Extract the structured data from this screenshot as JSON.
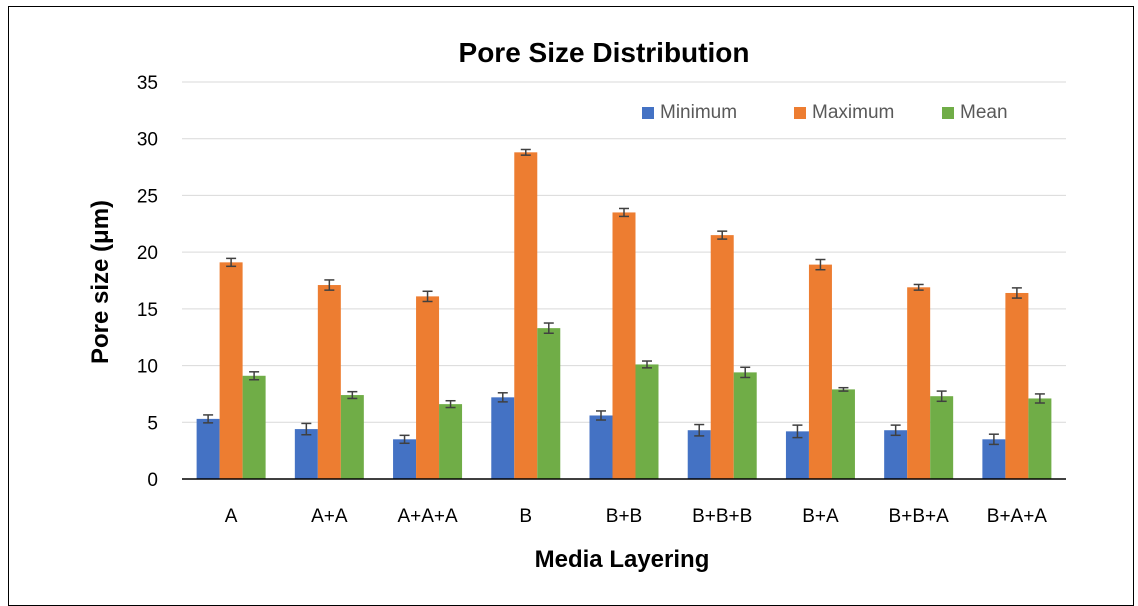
{
  "chart_data": {
    "type": "bar",
    "title": "Pore Size Distribution",
    "xlabel": "Media Layering",
    "ylabel": "Pore size (μm)",
    "ylim": [
      0,
      35
    ],
    "yticks": [
      0,
      5,
      10,
      15,
      20,
      25,
      30,
      35
    ],
    "grid": true,
    "legend_position": "top-right",
    "categories": [
      "A",
      "A+A",
      "A+A+A",
      "B",
      "B+B",
      "B+B+B",
      "B+A",
      "B+B+A",
      "B+A+A"
    ],
    "series": [
      {
        "name": "Minimum",
        "color": "#4472C4",
        "values": [
          5.3,
          4.4,
          3.5,
          7.2,
          5.6,
          4.3,
          4.2,
          4.3,
          3.5
        ],
        "errors": [
          0.35,
          0.5,
          0.35,
          0.4,
          0.4,
          0.5,
          0.55,
          0.45,
          0.45
        ]
      },
      {
        "name": "Maximum",
        "color": "#ED7D31",
        "values": [
          19.1,
          17.1,
          16.1,
          28.8,
          23.5,
          21.5,
          18.9,
          16.9,
          16.4
        ],
        "errors": [
          0.35,
          0.45,
          0.45,
          0.25,
          0.35,
          0.35,
          0.45,
          0.25,
          0.45
        ]
      },
      {
        "name": "Mean",
        "color": "#70AD47",
        "values": [
          9.1,
          7.4,
          6.6,
          13.3,
          10.1,
          9.4,
          7.9,
          7.3,
          7.1
        ],
        "errors": [
          0.35,
          0.3,
          0.3,
          0.45,
          0.3,
          0.45,
          0.15,
          0.45,
          0.4
        ]
      }
    ]
  }
}
